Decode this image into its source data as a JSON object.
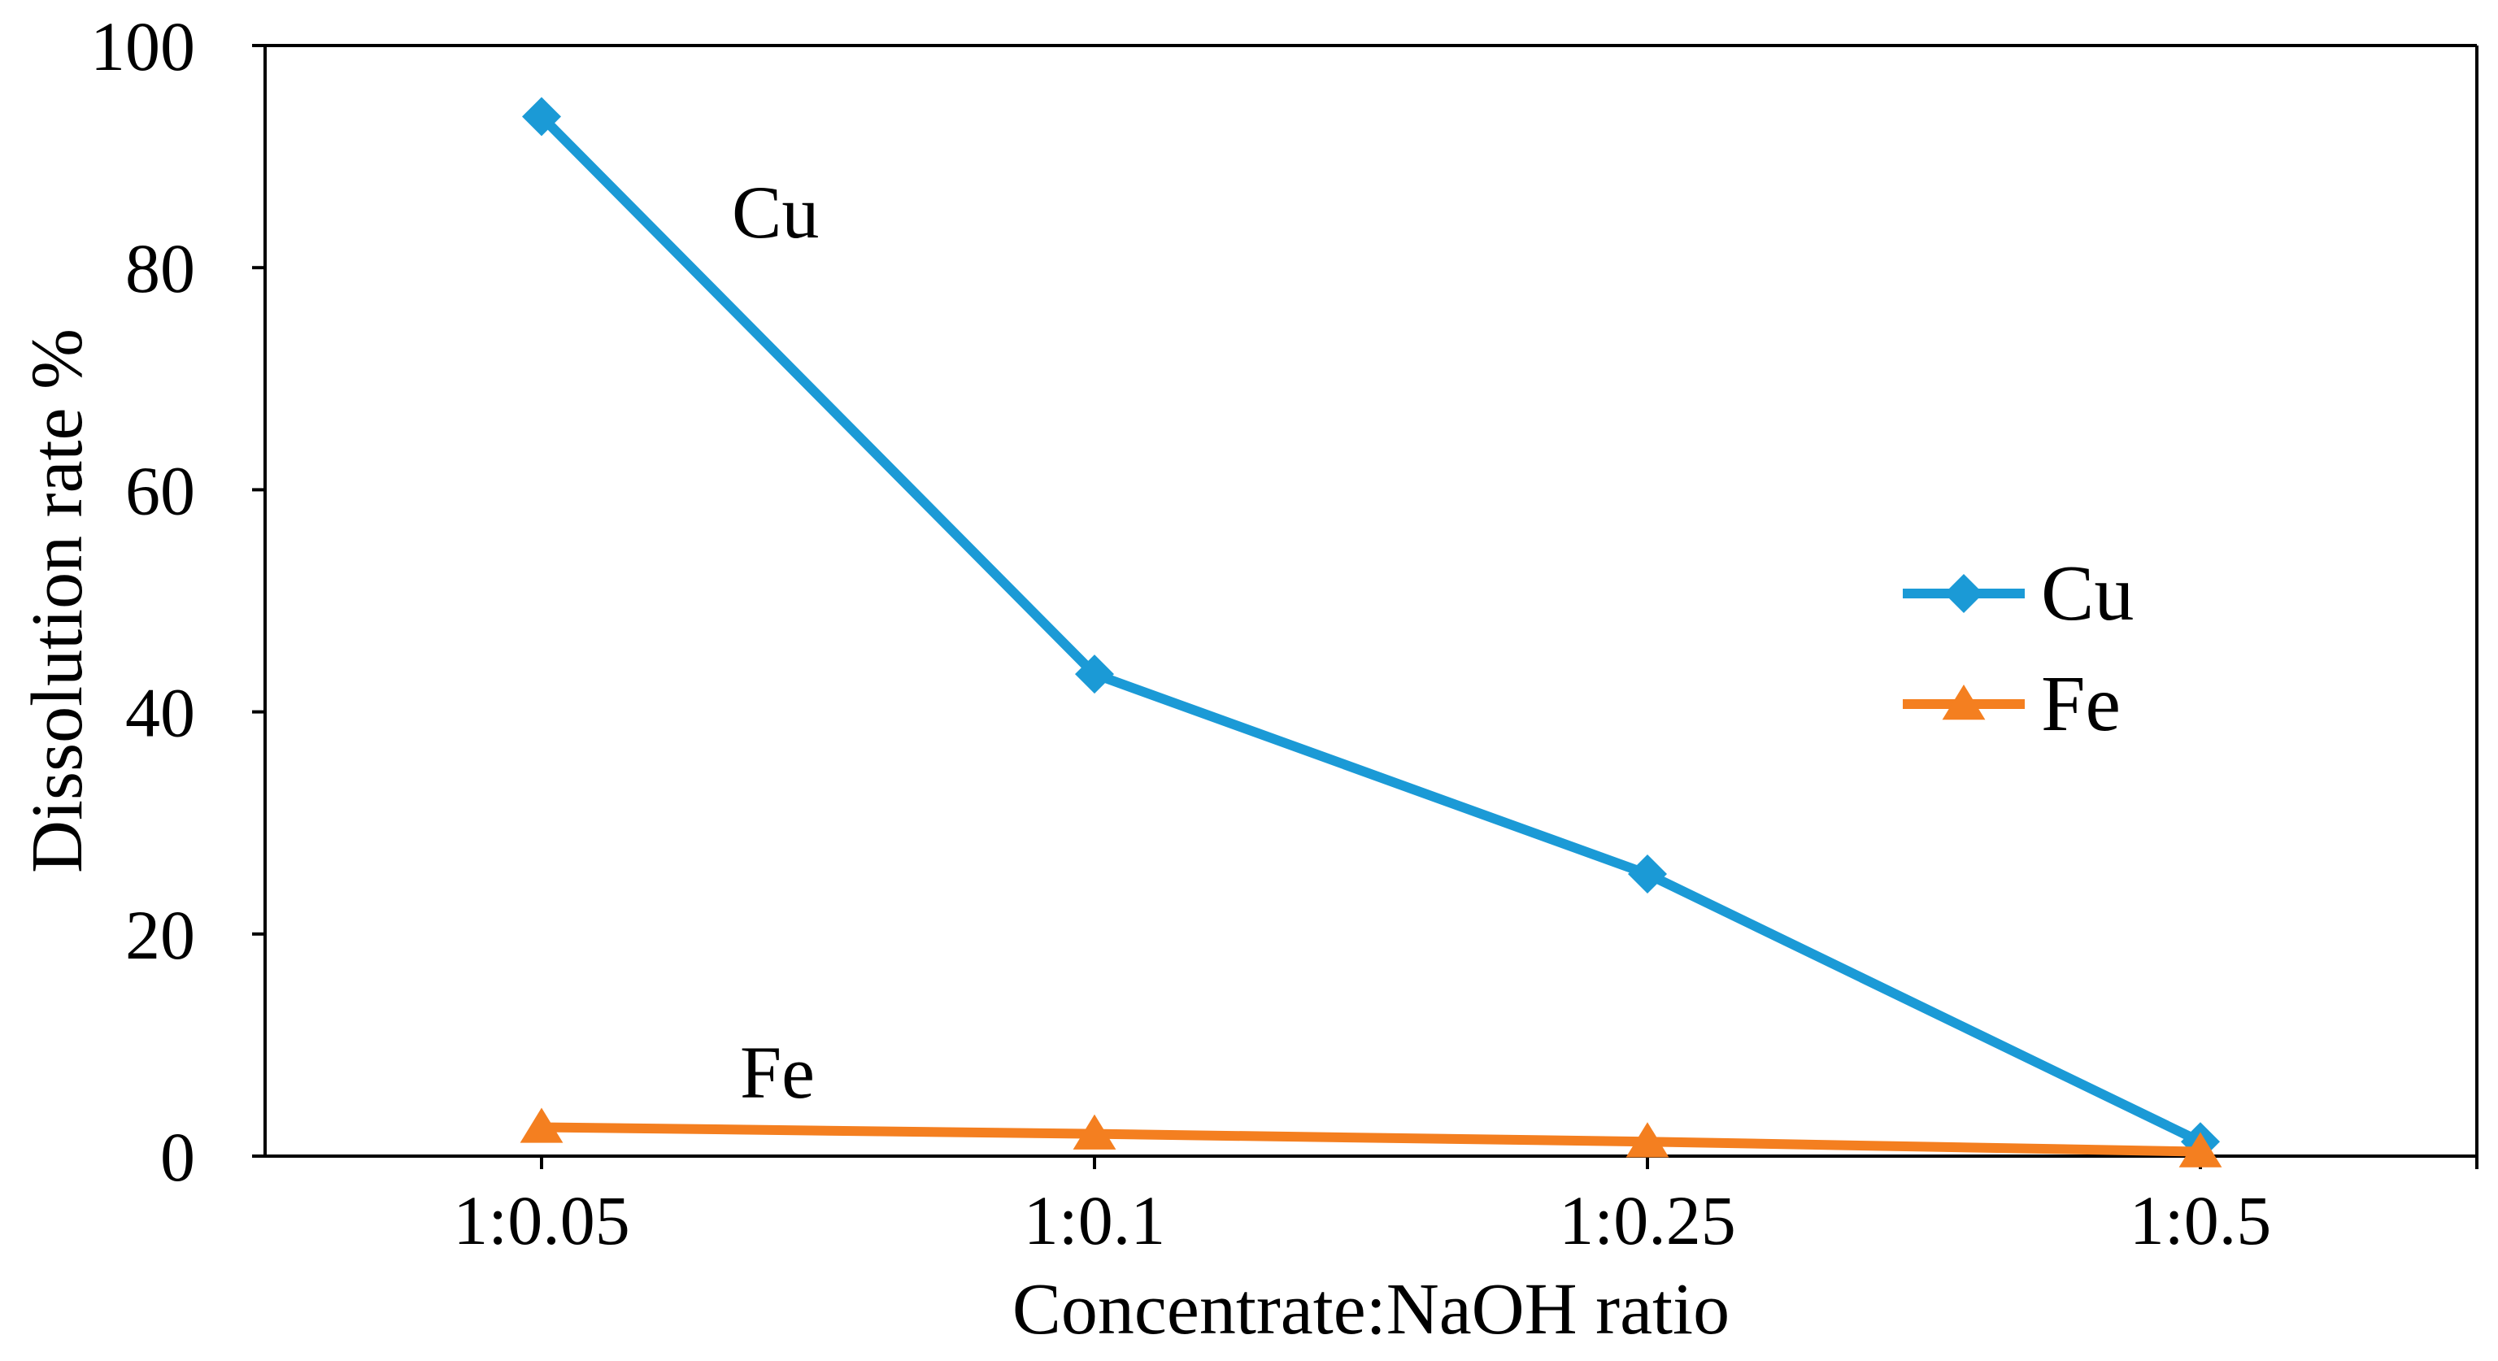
{
  "chart_data": {
    "type": "line",
    "categories": [
      "1:0.05",
      "1:0.1",
      "1:0.25",
      "1:0.5"
    ],
    "series": [
      {
        "name": "Cu",
        "values": [
          93.6,
          43.4,
          25.4,
          1.3
        ],
        "color": "#1B9AD6",
        "marker": "diamond"
      },
      {
        "name": "Fe",
        "values": [
          2.6,
          2.0,
          1.3,
          0.4
        ],
        "color": "#F47F20",
        "marker": "triangle"
      }
    ],
    "xlabel": "Concentrate:NaOH ratio",
    "ylabel": "Dissolution rate %",
    "ylim": [
      0,
      100
    ],
    "yticks": [
      "0",
      "20",
      "40",
      "60",
      "80",
      "100"
    ],
    "grid": false,
    "legend": "right",
    "annotations": [
      "Cu",
      "Fe"
    ]
  }
}
